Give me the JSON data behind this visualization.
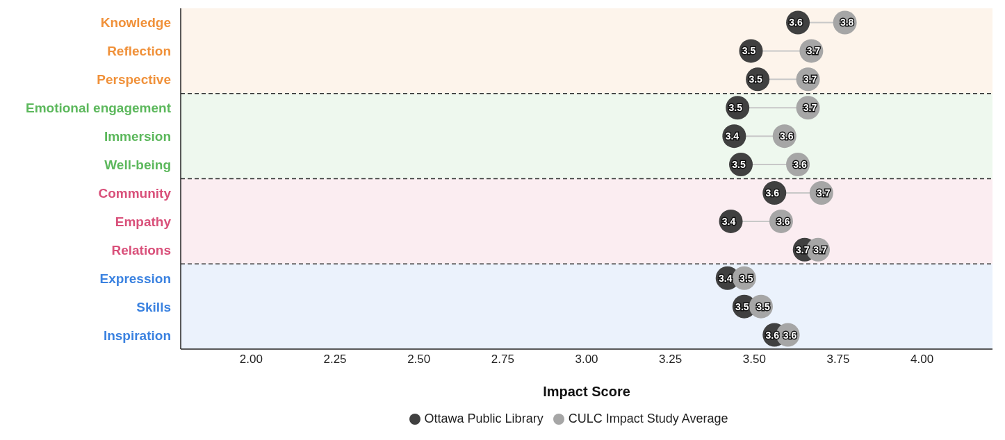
{
  "chart_data": {
    "type": "scatter",
    "xlabel": "Impact Score",
    "categories": [
      "Knowledge",
      "Reflection",
      "Perspective",
      "Emotional engagement",
      "Immersion",
      "Well-being",
      "Community",
      "Empathy",
      "Relations",
      "Expression",
      "Skills",
      "Inspiration"
    ],
    "series": [
      {
        "name": "Ottawa Public Library",
        "color": "#404040",
        "values": [
          3.63,
          3.49,
          3.51,
          3.45,
          3.44,
          3.46,
          3.56,
          3.43,
          3.65,
          3.42,
          3.47,
          3.56
        ],
        "value_labels": [
          "3.6",
          "3.5",
          "3.5",
          "3.5",
          "3.4",
          "3.5",
          "3.6",
          "3.4",
          "3.7",
          "3.4",
          "3.5",
          "3.6"
        ]
      },
      {
        "name": "CULC Impact Study Average",
        "color": "#a6a6a6",
        "values": [
          3.77,
          3.67,
          3.66,
          3.66,
          3.59,
          3.63,
          3.7,
          3.58,
          3.69,
          3.47,
          3.52,
          3.6
        ],
        "value_labels": [
          "3.8",
          "3.7",
          "3.7",
          "3.7",
          "3.6",
          "3.6",
          "3.7",
          "3.6",
          "3.7",
          "3.5",
          "3.5",
          "3.6"
        ]
      }
    ],
    "xlim": [
      1.79,
      4.21
    ],
    "xticks": [
      {
        "value": 2,
        "label": "2.00"
      },
      {
        "value": 2.25,
        "label": "2.25"
      },
      {
        "value": 2.5,
        "label": "2.50"
      },
      {
        "value": 2.75,
        "label": "2.75"
      },
      {
        "value": 3,
        "label": "3.00"
      },
      {
        "value": 3.25,
        "label": "3.25"
      },
      {
        "value": 3.5,
        "label": "3.50"
      },
      {
        "value": 3.75,
        "label": "3.75"
      },
      {
        "value": 4,
        "label": "4.00"
      }
    ],
    "bands": [
      {
        "axis": "y",
        "from": "Knowledge",
        "to": "Perspective",
        "color": "#f0913a"
      },
      {
        "axis": "y",
        "from": "Emotional engagement",
        "to": "Well-being",
        "color": "#5cb85c"
      },
      {
        "axis": "y",
        "from": "Community",
        "to": "Relations",
        "color": "#d9507a"
      },
      {
        "axis": "y",
        "from": "Expression",
        "to": "Inspiration",
        "color": "#3b82e0"
      }
    ],
    "orientation": "horizontal",
    "legend": "bottom",
    "marker": "circle"
  }
}
